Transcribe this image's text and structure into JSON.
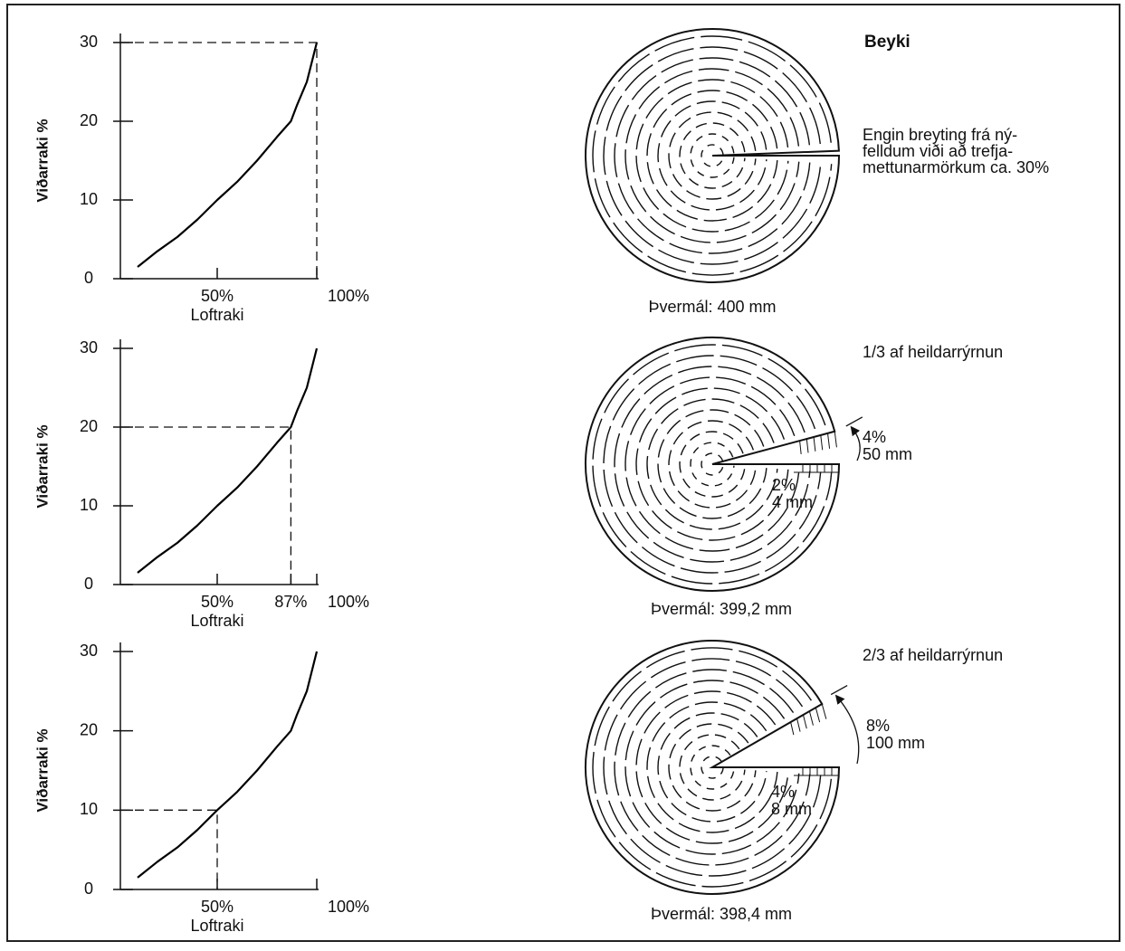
{
  "chart_data": [
    {
      "type": "line",
      "y_label": "Viðarraki %",
      "x_label": "Loftraki",
      "color": "#000000",
      "xlim": [
        0,
        100
      ],
      "ylim": [
        0,
        30
      ],
      "xticks": [
        {
          "value": 50,
          "label": "50%"
        },
        {
          "value": 100,
          "label": "100%"
        }
      ],
      "yticks": [
        0,
        10,
        20,
        30
      ],
      "x": [
        10,
        20,
        30,
        40,
        50,
        60,
        70,
        80,
        87,
        90,
        95,
        100
      ],
      "values": [
        1.5,
        3.5,
        5.3,
        7.5,
        10,
        12.3,
        15,
        18,
        20,
        22,
        25,
        30
      ],
      "reference": {
        "x": 100,
        "y": 30
      }
    },
    {
      "type": "line",
      "y_label": "Viðarraki %",
      "x_label": "Loftraki",
      "color": "#000000",
      "xlim": [
        0,
        100
      ],
      "ylim": [
        0,
        30
      ],
      "xticks": [
        {
          "value": 50,
          "label": "50%"
        },
        {
          "value": 87,
          "label": "87%"
        },
        {
          "value": 100,
          "label": "100%"
        }
      ],
      "yticks": [
        0,
        10,
        20,
        30
      ],
      "x": [
        10,
        20,
        30,
        40,
        50,
        60,
        70,
        80,
        87,
        90,
        95,
        100
      ],
      "values": [
        1.5,
        3.5,
        5.3,
        7.5,
        10,
        12.3,
        15,
        18,
        20,
        22,
        25,
        30
      ],
      "reference": {
        "x": 87,
        "y": 20
      }
    },
    {
      "type": "line",
      "y_label": "Viðarraki %",
      "x_label": "Loftraki",
      "color": "#000000",
      "xlim": [
        0,
        100
      ],
      "ylim": [
        0,
        30
      ],
      "xticks": [
        {
          "value": 50,
          "label": "50%"
        },
        {
          "value": 100,
          "label": "100%"
        }
      ],
      "yticks": [
        0,
        10,
        20,
        30
      ],
      "x": [
        10,
        20,
        30,
        40,
        50,
        60,
        70,
        80,
        87,
        90,
        95,
        100
      ],
      "values": [
        1.5,
        3.5,
        5.3,
        7.5,
        10,
        12.3,
        15,
        18,
        20,
        22,
        25,
        30
      ],
      "reference": {
        "x": 50,
        "y": 10
      }
    }
  ],
  "diagram": {
    "title": "Beyki",
    "sections": [
      {
        "note": [
          "Engin breyting frá ný-",
          "felldum viði að trefja-",
          "mettunarmörkum ca. 30%"
        ],
        "diameter": "Þvermál: 400 mm"
      },
      {
        "note": [
          "1/3 af heildarrýrnun"
        ],
        "outer_change": [
          "4%",
          "50 mm"
        ],
        "inner_change": [
          "2%",
          "4 mm"
        ],
        "diameter": "Þvermál: 399,2  mm"
      },
      {
        "note": [
          "2/3 af heildarrýrnun"
        ],
        "outer_change": [
          "8%",
          "100 mm"
        ],
        "inner_change": [
          "4%",
          "8 mm"
        ],
        "diameter": "Þvermál: 398,4  mm"
      }
    ]
  }
}
